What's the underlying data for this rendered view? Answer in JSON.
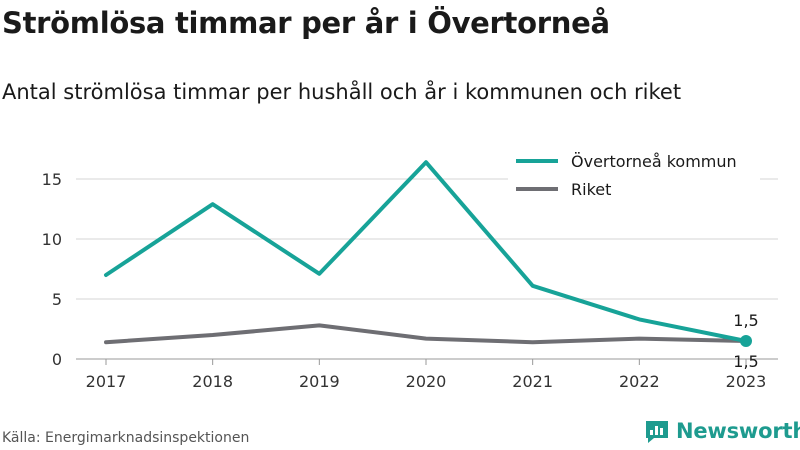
{
  "title": "Strömlösa timmar per år i Övertorneå",
  "subtitle": "Antal strömlösa timmar per hushåll och år i kommunen och riket",
  "source": "Källa: Energimarknadsinspektionen",
  "brand": {
    "name": "Newsworthy",
    "icon": "newsworthy-logo-icon",
    "color": "#1e9b8f"
  },
  "chart_data": {
    "type": "line",
    "x": [
      "2017",
      "2018",
      "2019",
      "2020",
      "2021",
      "2022",
      "2023"
    ],
    "yticks": [
      "0",
      "5",
      "10",
      "15"
    ],
    "ylim": [
      0,
      17
    ],
    "grid": true,
    "legend_position": "top-right",
    "series": [
      {
        "name": "Övertorneå kommun",
        "color": "#17a398",
        "values": [
          7.0,
          12.9,
          7.1,
          16.4,
          6.1,
          3.3,
          1.5
        ]
      },
      {
        "name": "Riket",
        "color": "#6e6e73",
        "values": [
          1.4,
          2.0,
          2.8,
          1.7,
          1.4,
          1.7,
          1.5
        ]
      }
    ],
    "annotations": [
      {
        "series": 0,
        "x": "2023",
        "text": "1,5"
      },
      {
        "series": 1,
        "x": "2023",
        "text": "1,5"
      }
    ]
  }
}
